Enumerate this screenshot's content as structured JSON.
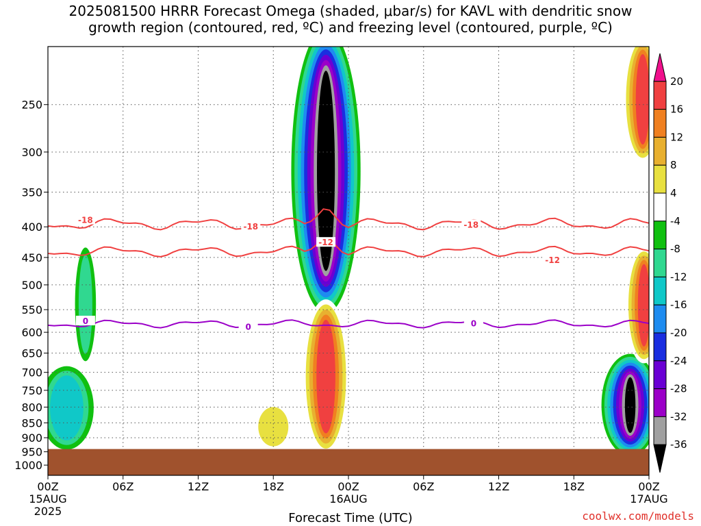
{
  "chart_data": {
    "type": "heatmap",
    "title_line1": "2025081500 HRRR Forecast Omega (shaded, μbar/s) for KAVL with dendritic snow",
    "title_line2": "growth region (contoured, red, ºC) and freezing level (contoured, purple, ºC)",
    "xlabel": "Forecast Time (UTC)",
    "x_ticks": [
      {
        "hour": 0,
        "label": "00Z",
        "sub1": "15AUG",
        "sub2": "2025"
      },
      {
        "hour": 6,
        "label": "06Z",
        "sub1": "",
        "sub2": ""
      },
      {
        "hour": 12,
        "label": "12Z",
        "sub1": "",
        "sub2": ""
      },
      {
        "hour": 18,
        "label": "18Z",
        "sub1": "",
        "sub2": ""
      },
      {
        "hour": 24,
        "label": "00Z",
        "sub1": "16AUG",
        "sub2": ""
      },
      {
        "hour": 30,
        "label": "06Z",
        "sub1": "",
        "sub2": ""
      },
      {
        "hour": 36,
        "label": "12Z",
        "sub1": "",
        "sub2": ""
      },
      {
        "hour": 42,
        "label": "18Z",
        "sub1": "",
        "sub2": ""
      },
      {
        "hour": 48,
        "label": "00Z",
        "sub1": "17AUG",
        "sub2": ""
      }
    ],
    "xlim": [
      0,
      48
    ],
    "y_axis": "pressure (hPa), log scale, inverted",
    "ylim": [
      1040,
      200
    ],
    "y_ticks": [
      250,
      300,
      350,
      400,
      450,
      500,
      550,
      600,
      650,
      700,
      750,
      800,
      850,
      900,
      950,
      1000
    ],
    "grid": "dotted",
    "colorbar": {
      "levels": [
        -36,
        -32,
        -28,
        -24,
        -20,
        -16,
        -12,
        -8,
        -4,
        4,
        8,
        12,
        16,
        20
      ],
      "colors": [
        "#000000",
        "#a0a0a0",
        "#9b00c8",
        "#6a00d4",
        "#1a2ee0",
        "#1e8cf0",
        "#10c8c8",
        "#30d890",
        "#10c010",
        "#ffffff",
        "#e8e040",
        "#e8b030",
        "#f08020",
        "#f04040",
        "#f0108c"
      ]
    },
    "omega_regions": [
      {
        "name": "early-updraft-top",
        "value": 4,
        "t": 3.0,
        "t_halfwidth": 0.4,
        "p_top": 200,
        "p_bot": 370
      },
      {
        "name": "early-updraft-low",
        "value": -8,
        "t": 3.0,
        "t_halfwidth": 0.4,
        "p_top": 440,
        "p_bot": 660
      },
      {
        "name": "early-updraft-base",
        "value": -12,
        "t": 1.5,
        "t_halfwidth": 1.5,
        "p_top": 700,
        "p_bot": 920
      },
      {
        "name": "main-updraft-core",
        "value": -36,
        "t": 22.2,
        "t_halfwidth": 0.8,
        "p_top": 200,
        "p_bot": 520
      },
      {
        "name": "main-downdraft-core",
        "value": 20,
        "t": 22.2,
        "t_halfwidth": 0.8,
        "p_top": 550,
        "p_bot": 920
      },
      {
        "name": "late-updraft-core",
        "value": -36,
        "t": 46.5,
        "t_halfwidth": 0.3,
        "p_top": 700,
        "p_bot": 900
      },
      {
        "name": "late-downdraft-top",
        "value": 20,
        "t": 47.5,
        "t_halfwidth": 0.5,
        "p_top": 200,
        "p_bot": 300
      },
      {
        "name": "late-downdraft-low",
        "value": 20,
        "t": 47.6,
        "t_halfwidth": 0.4,
        "p_top": 450,
        "p_bot": 650
      },
      {
        "name": "afternoon-sinking",
        "value": 8,
        "t": 18.0,
        "t_halfwidth": 1.2,
        "p_top": 800,
        "p_bot": 930
      }
    ],
    "contours": [
      {
        "name": "-18",
        "color": "#f04040",
        "labels": [
          {
            "t": 3.0,
            "p": 390
          },
          {
            "t": 16.2,
            "p": 400
          },
          {
            "t": 33.8,
            "p": 397
          }
        ]
      },
      {
        "name": "-12",
        "color": "#f04040",
        "labels": [
          {
            "t": 22.2,
            "p": 425
          },
          {
            "t": 40.3,
            "p": 455
          }
        ]
      },
      {
        "name": "0",
        "color": "#9b00c8",
        "labels": [
          {
            "t": 3.0,
            "p": 575
          },
          {
            "t": 16.0,
            "p": 588
          },
          {
            "t": 34.0,
            "p": 580
          }
        ]
      }
    ],
    "ground_top_p": 940
  },
  "credit": "coolwx.com/models"
}
